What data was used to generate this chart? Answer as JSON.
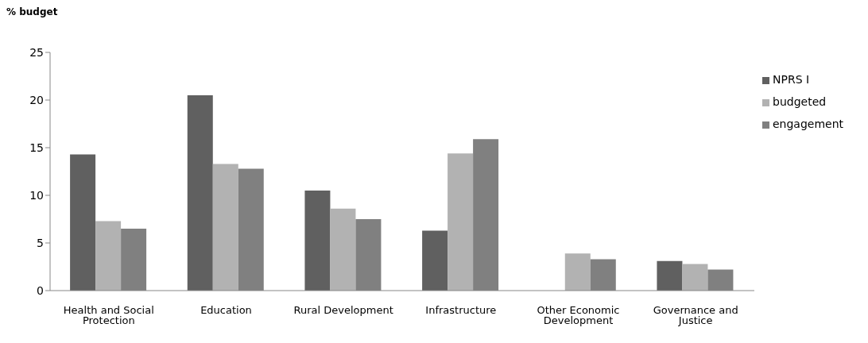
{
  "chart_data": {
    "type": "bar",
    "ylabel": "% budget",
    "categories": [
      "Health and Social Protection",
      "Education",
      "Rural Development",
      "Infrastructure",
      "Other Economic Development",
      "Governance and Justice"
    ],
    "series": [
      {
        "name": "NPRS I",
        "color": "#606060",
        "values": [
          14.3,
          20.5,
          10.5,
          6.3,
          null,
          3.1
        ]
      },
      {
        "name": "budgeted",
        "color": "#b2b2b2",
        "values": [
          7.3,
          13.3,
          8.6,
          14.4,
          3.9,
          2.8
        ]
      },
      {
        "name": "engagement",
        "color": "#808080",
        "values": [
          6.5,
          12.8,
          7.5,
          15.9,
          3.3,
          2.2
        ]
      }
    ],
    "ylim": [
      0,
      25
    ],
    "yticks": [
      0,
      5,
      10,
      15,
      20,
      25
    ],
    "grid": false,
    "legend": "right"
  }
}
